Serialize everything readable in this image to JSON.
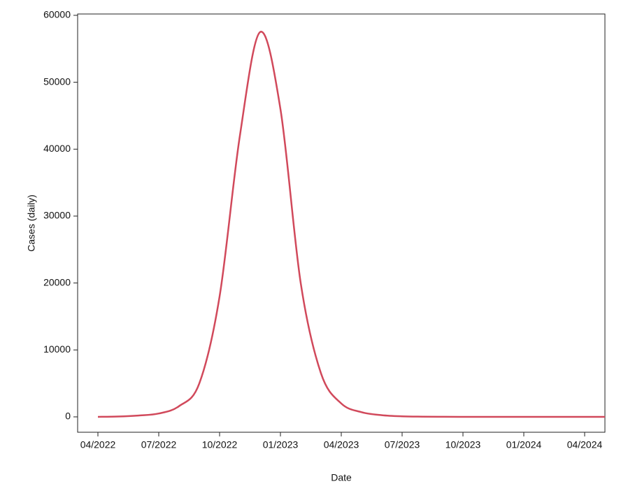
{
  "chart_data": {
    "type": "line",
    "x_label": "Date",
    "y_label": "Cases (daily)",
    "x": [
      "2022-04",
      "2022-05",
      "2022-06",
      "2022-07",
      "2022-08",
      "2022-09",
      "2022-10",
      "2022-11",
      "2022-12",
      "2023-01",
      "2023-02",
      "2023-03",
      "2023-04",
      "2023-05",
      "2023-06",
      "2023-07",
      "2023-08",
      "2023-09",
      "2023-10",
      "2023-11",
      "2023-12",
      "2024-01",
      "2024-02",
      "2024-03",
      "2024-04",
      "2024-05"
    ],
    "series": [
      {
        "name": "Cases (daily)",
        "color": "#d1495b",
        "values": [
          0,
          50,
          200,
          500,
          1600,
          5000,
          18000,
          42000,
          57500,
          46000,
          20000,
          6500,
          2000,
          700,
          250,
          80,
          30,
          10,
          0,
          0,
          0,
          0,
          0,
          0,
          0,
          0
        ]
      }
    ],
    "xlim": [
      "2022-03",
      "2024-05"
    ],
    "xticks": [
      {
        "value": "2022-04",
        "label": "04/2022"
      },
      {
        "value": "2022-07",
        "label": "07/2022"
      },
      {
        "value": "2022-10",
        "label": "10/2022"
      },
      {
        "value": "2023-01",
        "label": "01/2023"
      },
      {
        "value": "2023-04",
        "label": "04/2023"
      },
      {
        "value": "2023-07",
        "label": "07/2023"
      },
      {
        "value": "2023-10",
        "label": "10/2023"
      },
      {
        "value": "2024-01",
        "label": "01/2024"
      },
      {
        "value": "2024-04",
        "label": "04/2024"
      }
    ],
    "ylim": [
      -2300,
      60200
    ],
    "yticks": [
      0,
      10000,
      20000,
      30000,
      40000,
      50000,
      60000
    ],
    "grid": false
  }
}
